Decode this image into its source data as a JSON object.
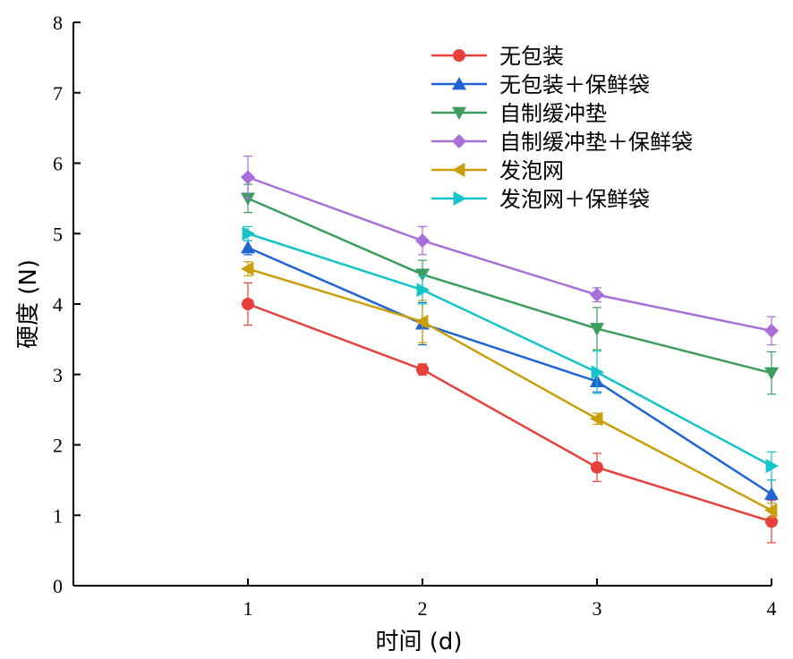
{
  "chart_data": {
    "type": "line",
    "xlabel": "时间 (d)",
    "ylabel": "硬度 (N)",
    "x": [
      1,
      2,
      3,
      4
    ],
    "xlim": [
      0,
      4
    ],
    "ylim": [
      0,
      8
    ],
    "xticks": [
      1,
      2,
      3,
      4
    ],
    "yticks": [
      0,
      1,
      2,
      3,
      4,
      5,
      6,
      7,
      8
    ],
    "grid": false,
    "legend_position": "top-right",
    "series": [
      {
        "name": "无包装",
        "color": "#e8413c",
        "marker": "circle",
        "values": [
          4.0,
          3.07,
          1.68,
          0.91
        ],
        "errors": [
          0.3,
          0.08,
          0.2,
          0.3
        ]
      },
      {
        "name": "无包装＋保鲜袋",
        "color": "#1f64d3",
        "marker": "triangle-up",
        "values": [
          4.8,
          3.72,
          2.9,
          1.3
        ],
        "errors": [
          0.1,
          0.3,
          0.15,
          0.2
        ]
      },
      {
        "name": "自制缓冲垫",
        "color": "#3b9e5e",
        "marker": "triangle-down",
        "values": [
          5.5,
          4.42,
          3.65,
          3.02
        ],
        "errors": [
          0.2,
          0.2,
          0.3,
          0.3
        ]
      },
      {
        "name": "自制缓冲垫＋保鲜袋",
        "color": "#a86fd8",
        "marker": "diamond",
        "values": [
          5.8,
          4.9,
          4.13,
          3.62
        ],
        "errors": [
          0.3,
          0.2,
          0.1,
          0.2
        ]
      },
      {
        "name": "发泡网",
        "color": "#c9a00c",
        "marker": "triangle-left",
        "values": [
          4.5,
          3.75,
          2.37,
          1.07
        ],
        "errors": [
          0.1,
          0.3,
          0.08,
          0.1
        ]
      },
      {
        "name": "发泡网＋保鲜袋",
        "color": "#14c4c8",
        "marker": "triangle-right",
        "values": [
          5.0,
          4.2,
          3.03,
          1.7
        ],
        "errors": [
          0.1,
          0.2,
          0.3,
          0.2
        ]
      }
    ]
  }
}
